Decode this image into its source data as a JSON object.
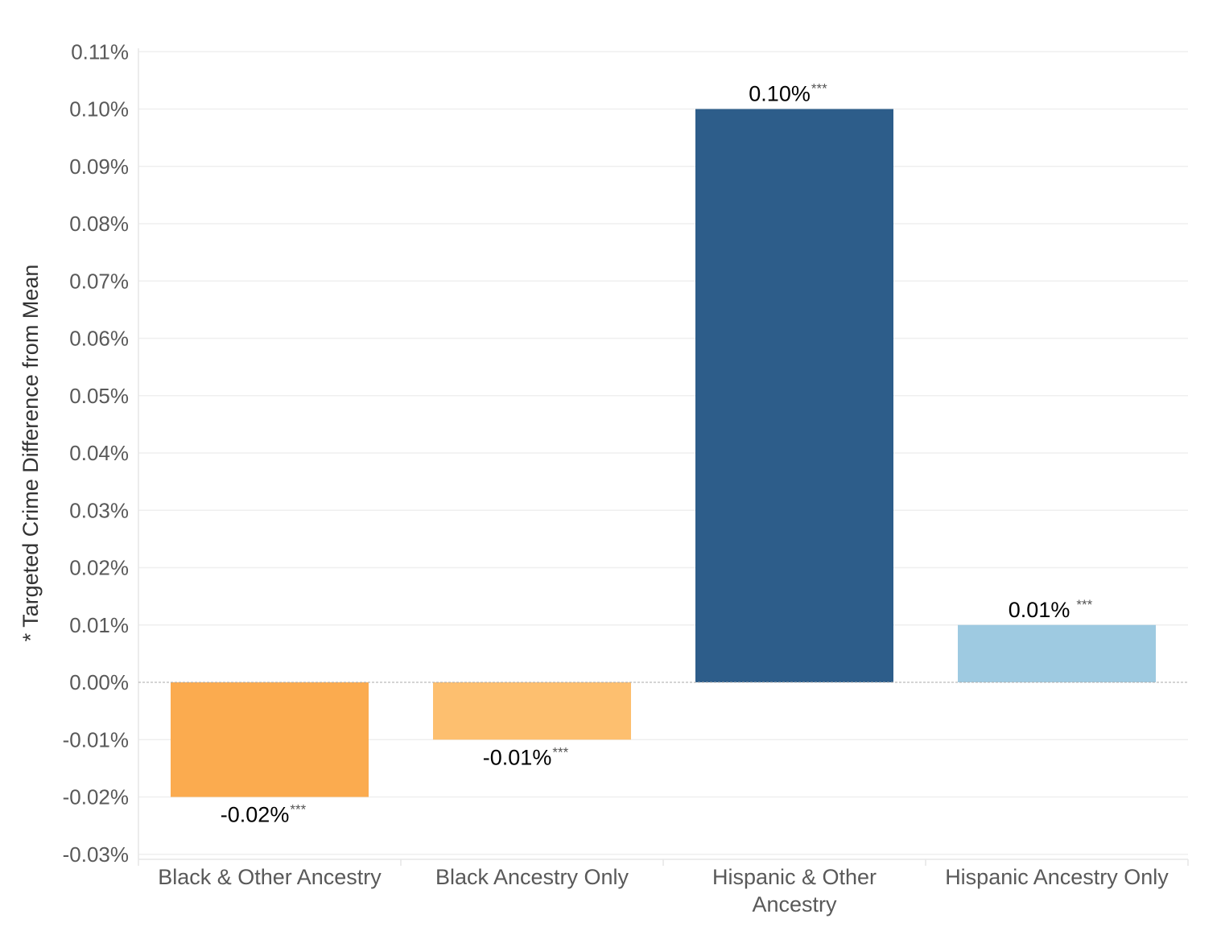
{
  "chart_data": {
    "type": "bar",
    "ylabel": "* Targeted Crime Difference from Mean",
    "ylim": [
      -0.03,
      0.11
    ],
    "yticks": [
      "0.11%",
      "0.10%",
      "0.09%",
      "0.08%",
      "0.07%",
      "0.06%",
      "0.05%",
      "0.04%",
      "0.03%",
      "0.02%",
      "0.01%",
      "0.00%",
      "-0.01%",
      "-0.02%",
      "-0.03%"
    ],
    "ytick_values": [
      0.11,
      0.1,
      0.09,
      0.08,
      0.07,
      0.06,
      0.05,
      0.04,
      0.03,
      0.02,
      0.01,
      0.0,
      -0.01,
      -0.02,
      -0.03
    ],
    "grid": true,
    "categories": [
      [
        "Black & Other Ancestry"
      ],
      [
        "Black Ancestry Only"
      ],
      [
        "Hispanic & Other",
        "Ancestry"
      ],
      [
        "Hispanic Ancestry Only"
      ]
    ],
    "values": [
      -0.02,
      -0.01,
      0.1,
      0.01
    ],
    "value_labels": [
      "-0.02%",
      "-0.01%",
      "0.10%",
      "0.01%"
    ],
    "significance": [
      "***",
      "***",
      "***",
      "***"
    ],
    "colors": [
      "#FBAB4F",
      "#FDBF6F",
      "#2D5D8A",
      "#9ECAE1"
    ]
  }
}
